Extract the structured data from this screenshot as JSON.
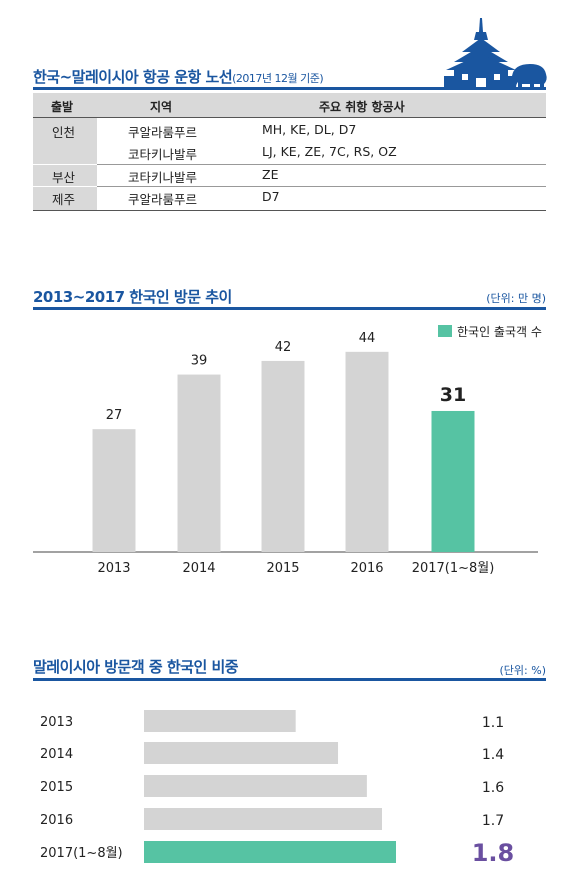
{
  "section1": {
    "title": "한국~말레이시아 항공 운항 노선",
    "subtitle": "(2017년 12월 기준)",
    "headers": [
      "출발",
      "지역",
      "주요 취항 항공사"
    ],
    "rows": [
      {
        "origin": "인천",
        "entries": [
          {
            "region": "쿠알라룸푸르",
            "airlines": "MH, KE, DL, D7"
          },
          {
            "region": "코타키나발루",
            "airlines": "LJ, KE, ZE, 7C, RS, OZ"
          }
        ]
      },
      {
        "origin": "부산",
        "entries": [
          {
            "region": "코타키나발루",
            "airlines": "ZE"
          }
        ]
      },
      {
        "origin": "제주",
        "entries": [
          {
            "region": "쿠알라룸푸르",
            "airlines": "D7"
          }
        ]
      }
    ]
  },
  "section2": {
    "title": "2013~2017 한국인 방문 추이",
    "unit": "(단위: 만 명)",
    "legend": "한국인 출국객 수"
  },
  "section3": {
    "title": "말레이시아 방문객 중 한국인 비중",
    "unit": "(단위: %)"
  },
  "colors": {
    "accent": "#1a56a0",
    "bar_gray": "#d4d4d4",
    "bar_highlight": "#56c3a3",
    "value_highlight": "#6a4fa0"
  },
  "chart_data": [
    {
      "type": "bar",
      "title": "2013~2017 한국인 방문 추이",
      "unit": "(단위: 만 명)",
      "categories": [
        "2013",
        "2014",
        "2015",
        "2016",
        "2017(1~8월)"
      ],
      "series": [
        {
          "name": "한국인 출국객 수",
          "values": [
            27,
            39,
            42,
            44,
            31
          ]
        }
      ],
      "highlight_index": 4,
      "ylim": [
        0,
        50
      ],
      "grid": false,
      "legend": "top-right"
    },
    {
      "type": "bar",
      "orientation": "horizontal",
      "title": "말레이시아 방문객 중 한국인 비중",
      "unit": "(단위: %)",
      "categories": [
        "2013",
        "2014",
        "2015",
        "2016",
        "2017(1~8월)"
      ],
      "values": [
        1.1,
        1.4,
        1.6,
        1.7,
        1.8
      ],
      "value_labels": [
        "1.1",
        "1.4",
        "1.6",
        "1.7",
        "1.8"
      ],
      "highlight_index": 4,
      "xlim": [
        0,
        2.0
      ]
    }
  ]
}
